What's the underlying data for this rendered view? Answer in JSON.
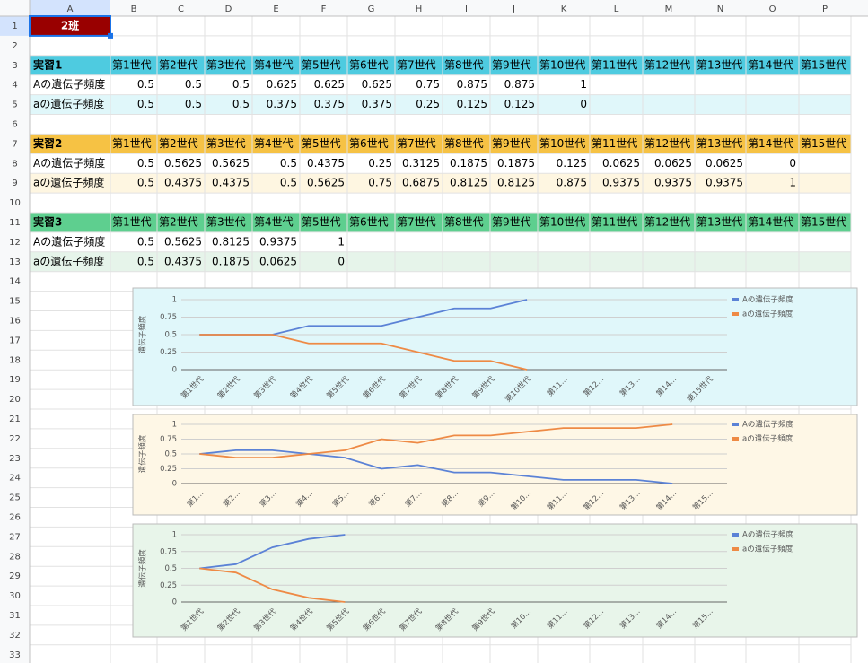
{
  "sheet": {
    "column_headers": [
      "A",
      "B",
      "C",
      "D",
      "E",
      "F",
      "G",
      "H",
      "I",
      "J",
      "K",
      "L",
      "M",
      "N",
      "O",
      "P"
    ],
    "row_headers": [
      1,
      2,
      3,
      4,
      5,
      6,
      7,
      8,
      9,
      10,
      11,
      12,
      13,
      14,
      15,
      16,
      17,
      18,
      19,
      20,
      21,
      22,
      23,
      24,
      25,
      26,
      27,
      28,
      29,
      30,
      31,
      32,
      33
    ],
    "a1": "2班",
    "tables": [
      {
        "title": "実習1",
        "generations": [
          "第1世代",
          "第2世代",
          "第3世代",
          "第4世代",
          "第5世代",
          "第6世代",
          "第7世代",
          "第8世代",
          "第9世代",
          "第10世代",
          "第11世代",
          "第12世代",
          "第13世代",
          "第14世代",
          "第15世代"
        ],
        "rows": [
          {
            "label": "Aの遺伝子頻度",
            "values": [
              0.5,
              0.5,
              0.5,
              0.625,
              0.625,
              0.625,
              0.75,
              0.875,
              0.875,
              1
            ]
          },
          {
            "label": "aの遺伝子頻度",
            "values": [
              0.5,
              0.5,
              0.5,
              0.375,
              0.375,
              0.375,
              0.25,
              0.125,
              0.125,
              0
            ]
          }
        ]
      },
      {
        "title": "実習2",
        "generations": [
          "第1世代",
          "第2世代",
          "第3世代",
          "第4世代",
          "第5世代",
          "第6世代",
          "第7世代",
          "第8世代",
          "第9世代",
          "第10世代",
          "第11世代",
          "第12世代",
          "第13世代",
          "第14世代",
          "第15世代"
        ],
        "rows": [
          {
            "label": "Aの遺伝子頻度",
            "values": [
              0.5,
              0.5625,
              0.5625,
              0.5,
              0.4375,
              0.25,
              0.3125,
              0.1875,
              0.1875,
              0.125,
              0.0625,
              0.0625,
              0.0625,
              0
            ]
          },
          {
            "label": "aの遺伝子頻度",
            "values": [
              0.5,
              0.4375,
              0.4375,
              0.5,
              0.5625,
              0.75,
              0.6875,
              0.8125,
              0.8125,
              0.875,
              0.9375,
              0.9375,
              0.9375,
              1
            ]
          }
        ]
      },
      {
        "title": "実習3",
        "generations": [
          "第1世代",
          "第2世代",
          "第3世代",
          "第4世代",
          "第5世代",
          "第6世代",
          "第7世代",
          "第8世代",
          "第9世代",
          "第10世代",
          "第11世代",
          "第12世代",
          "第13世代",
          "第14世代",
          "第15世代"
        ],
        "rows": [
          {
            "label": "Aの遺伝子頻度",
            "values": [
              0.5,
              0.5625,
              0.8125,
              0.9375,
              1
            ]
          },
          {
            "label": "aの遺伝子頻度",
            "values": [
              0.5,
              0.4375,
              0.1875,
              0.0625,
              0
            ]
          }
        ]
      }
    ]
  },
  "charts": [
    {
      "type": "line",
      "y_label": "遺伝子頻度",
      "ylim": [
        0,
        1
      ],
      "yticks": [
        0,
        0.25,
        0.5,
        0.75,
        1
      ],
      "grid": true,
      "legend": "right",
      "background": "#e0f7fa",
      "categories": [
        "第1世代",
        "第2世代",
        "第3世代",
        "第4世代",
        "第5世代",
        "第6世代",
        "第7世代",
        "第8世代",
        "第9世代",
        "第10世代",
        "第11...",
        "第12...",
        "第13...",
        "第14...",
        "第15世代"
      ],
      "series": [
        {
          "name": "Aの遺伝子頻度",
          "color": "#5b82d6",
          "values": [
            0.5,
            0.5,
            0.5,
            0.625,
            0.625,
            0.625,
            0.75,
            0.875,
            0.875,
            1,
            null,
            null,
            null,
            null,
            null
          ]
        },
        {
          "name": "aの遺伝子頻度",
          "color": "#ee8a45",
          "values": [
            0.5,
            0.5,
            0.5,
            0.375,
            0.375,
            0.375,
            0.25,
            0.125,
            0.125,
            0,
            null,
            null,
            null,
            null,
            null
          ]
        }
      ]
    },
    {
      "type": "line",
      "y_label": "遺伝子頻度",
      "ylim": [
        0,
        1
      ],
      "yticks": [
        0,
        0.25,
        0.5,
        0.75,
        1
      ],
      "grid": true,
      "legend": "right",
      "background": "#fef7e6",
      "categories": [
        "第1...",
        "第2...",
        "第3...",
        "第4...",
        "第5...",
        "第6...",
        "第7...",
        "第8...",
        "第9...",
        "第10...",
        "第11...",
        "第12...",
        "第13...",
        "第14...",
        "第15..."
      ],
      "series": [
        {
          "name": "Aの遺伝子頻度",
          "color": "#5b82d6",
          "values": [
            0.5,
            0.5625,
            0.5625,
            0.5,
            0.4375,
            0.25,
            0.3125,
            0.1875,
            0.1875,
            0.125,
            0.0625,
            0.0625,
            0.0625,
            0,
            null
          ]
        },
        {
          "name": "aの遺伝子頻度",
          "color": "#ee8a45",
          "values": [
            0.5,
            0.4375,
            0.4375,
            0.5,
            0.5625,
            0.75,
            0.6875,
            0.8125,
            0.8125,
            0.875,
            0.9375,
            0.9375,
            0.9375,
            1,
            null
          ]
        }
      ]
    },
    {
      "type": "line",
      "y_label": "遺伝子頻度",
      "ylim": [
        0,
        1
      ],
      "yticks": [
        0,
        0.25,
        0.5,
        0.75,
        1
      ],
      "grid": true,
      "legend": "right",
      "background": "#e8f5ea",
      "categories": [
        "第1世代",
        "第2世代",
        "第3世代",
        "第4世代",
        "第5世代",
        "第6世代",
        "第7世代",
        "第8世代",
        "第9世代",
        "第10...",
        "第11...",
        "第12...",
        "第13...",
        "第14...",
        "第15..."
      ],
      "series": [
        {
          "name": "Aの遺伝子頻度",
          "color": "#5b82d6",
          "values": [
            0.5,
            0.5625,
            0.8125,
            0.9375,
            1,
            null,
            null,
            null,
            null,
            null,
            null,
            null,
            null,
            null,
            null
          ]
        },
        {
          "name": "aの遺伝子頻度",
          "color": "#ee8a45",
          "values": [
            0.5,
            0.4375,
            0.1875,
            0.0625,
            0,
            null,
            null,
            null,
            null,
            null,
            null,
            null,
            null,
            null,
            null
          ]
        }
      ]
    }
  ]
}
